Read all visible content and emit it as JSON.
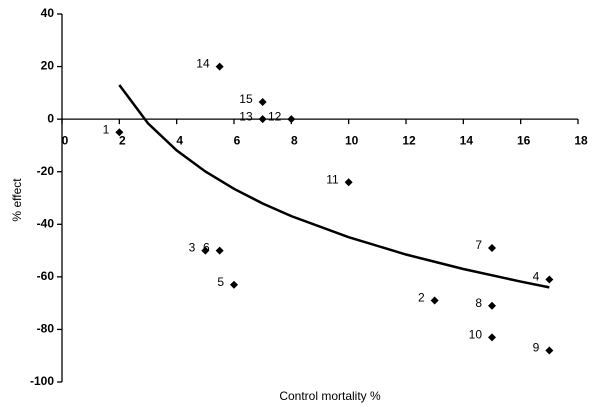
{
  "chart_data": {
    "type": "scatter",
    "x_label": "Control mortality %",
    "y_label": "% effect",
    "xlim": [
      0,
      18
    ],
    "xticks": [
      0,
      2,
      4,
      6,
      8,
      10,
      12,
      14,
      16,
      18
    ],
    "ylim": [
      -100,
      40
    ],
    "yticks": [
      -100,
      -80,
      -60,
      -40,
      -20,
      0,
      20,
      40
    ],
    "color": "#000000",
    "points": {
      "x": [
        2,
        13,
        5,
        17,
        6,
        5.5,
        15,
        15,
        17,
        15,
        10,
        8,
        7,
        5.5,
        7
      ],
      "y": [
        -5,
        -69,
        -50,
        -61,
        -63,
        -50,
        -49,
        -71,
        -88,
        -83,
        -24,
        0,
        0,
        20,
        6.5
      ],
      "labels": [
        "1",
        "2",
        "3",
        "4",
        "5",
        "6",
        "7",
        "8",
        "9",
        "10",
        "11",
        "12",
        "13",
        "14",
        "15"
      ]
    },
    "curve": {
      "x": [
        2,
        3,
        4,
        5,
        6,
        7,
        8,
        10,
        12,
        14,
        16,
        17
      ],
      "y": [
        13.0,
        -1.6,
        -11.9,
        -19.9,
        -26.5,
        -32.1,
        -36.9,
        -44.9,
        -51.5,
        -57.0,
        -61.8,
        -64.0
      ]
    }
  }
}
